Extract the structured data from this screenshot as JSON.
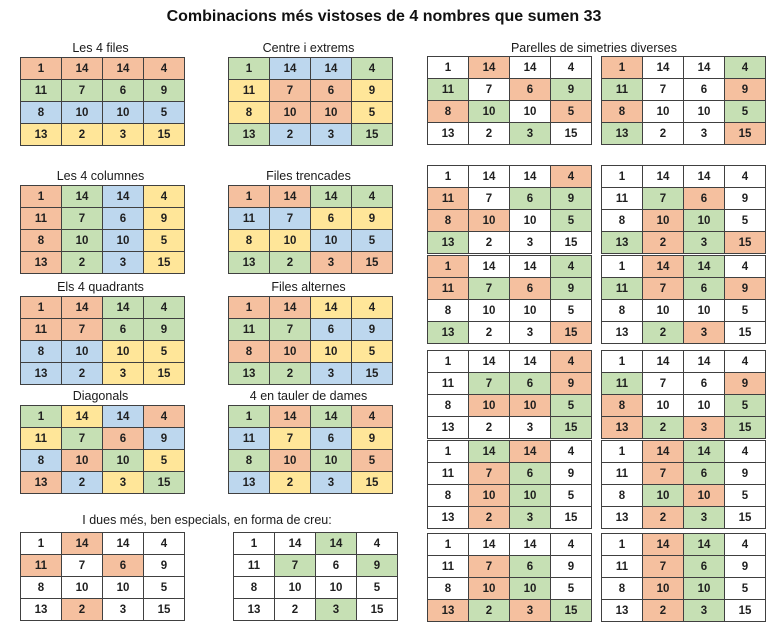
{
  "title": "Combinacions més vistoses de 4 nombres que sumen 33",
  "numbers": [
    [
      1,
      14,
      14,
      4
    ],
    [
      11,
      7,
      6,
      9
    ],
    [
      8,
      10,
      10,
      5
    ],
    [
      13,
      2,
      3,
      15
    ]
  ],
  "palette": {
    "S": "#F5C09F",
    "G": "#C6E0B4",
    "B": "#BDD7EE",
    "Y": "#FFE699",
    "W": "#FFFFFF"
  },
  "palette_legend": {
    "S": "salmon",
    "G": "green",
    "B": "blue",
    "Y": "yellow",
    "W": "white"
  },
  "left_column": [
    {
      "label": "Les 4 files",
      "fill": [
        "SSSS",
        "GGGG",
        "BBBB",
        "YYYY"
      ]
    },
    {
      "label": "Les 4 columnes",
      "fill": [
        "SGBY",
        "SGBY",
        "SGBY",
        "SGBY"
      ]
    },
    {
      "label": "Els 4 quadrants",
      "fill": [
        "SSGG",
        "SSGG",
        "BBYY",
        "BBYY"
      ]
    },
    {
      "label": "Diagonals",
      "fill": [
        "GYBS",
        "YGSB",
        "BSGY",
        "SBYG"
      ]
    }
  ],
  "middle_column": [
    {
      "label": "Centre i extrems",
      "fill": [
        "GBBG",
        "YSSY",
        "YSSY",
        "GBBG"
      ]
    },
    {
      "label": "Files trencades",
      "fill": [
        "SSGG",
        "BBYY",
        "YYBB",
        "GGSS"
      ]
    },
    {
      "label": "Files alternes",
      "fill": [
        "SSYY",
        "GGBB",
        "SSYY",
        "GGBB"
      ]
    },
    {
      "label": "4 en tauler de dames",
      "fill": [
        "GSGS",
        "BYBY",
        "GSGS",
        "BYBY"
      ]
    }
  ],
  "pairs": {
    "header": "Parelles de simetries diverses",
    "rows": [
      {
        "left": {
          "fill": [
            "WSWW",
            "GWSG",
            "SGWS",
            "WWGW"
          ]
        },
        "right": {
          "fill": [
            "SWWG",
            "GWWS",
            "SWWG",
            "GWWS"
          ]
        }
      },
      {
        "left": {
          "fill": [
            "WWWS",
            "SWGG",
            "SSWG",
            "GWWW"
          ]
        },
        "right": {
          "fill": [
            "WWWW",
            "WGSW",
            "WSGW",
            "GSGS"
          ]
        }
      },
      {
        "left": {
          "fill": [
            "SWWG",
            "SGSG",
            "WWWW",
            "GWWS"
          ]
        },
        "right": {
          "fill": [
            "WSGW",
            "GSGS",
            "WWWW",
            "WGSW"
          ]
        }
      },
      {
        "left": {
          "fill": [
            "WWWS",
            "WGGS",
            "WSSG",
            "WWWG"
          ]
        },
        "right": {
          "fill": [
            "WWWW",
            "GWWS",
            "SWWG",
            "SGSG"
          ]
        }
      },
      {
        "left": {
          "fill": [
            "WGSW",
            "WSGW",
            "WSGW",
            "WSGW"
          ]
        },
        "right": {
          "fill": [
            "WSGW",
            "WSGW",
            "WGSW",
            "WSGW"
          ]
        }
      },
      {
        "left": {
          "fill": [
            "WWWW",
            "WSGW",
            "WSGW",
            "SGSG"
          ]
        },
        "right": {
          "fill": [
            "WSGW",
            "WSGW",
            "WSGW",
            "WSGW"
          ]
        }
      }
    ]
  },
  "bottom": {
    "label": "I dues més, ben especials, en forma de creu:",
    "grids": [
      {
        "fill": [
          "WSWW",
          "SWSW",
          "WWWW",
          "WSWW"
        ]
      },
      {
        "fill": [
          "WWGW",
          "WGWG",
          "WWWW",
          "WWGW"
        ]
      }
    ]
  }
}
